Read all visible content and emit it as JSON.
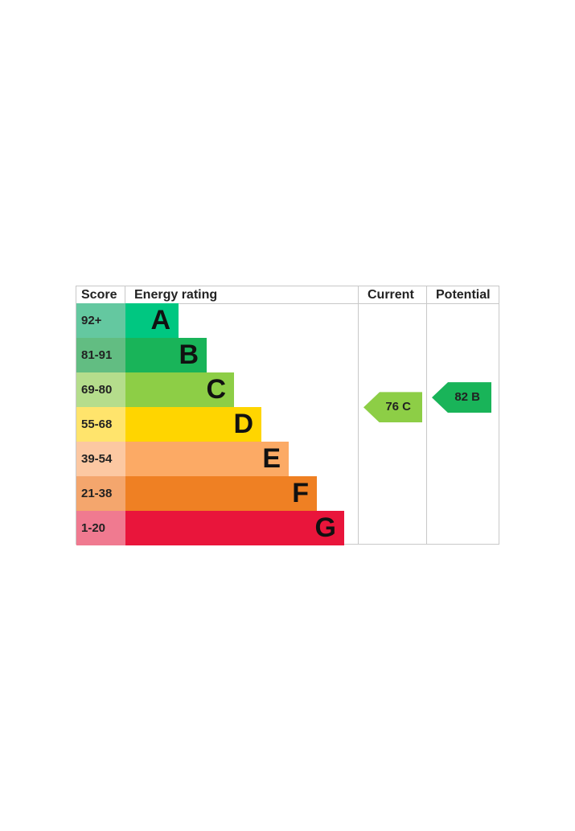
{
  "chart_data": {
    "type": "table",
    "headers": {
      "score": "Score",
      "rating": "Energy rating",
      "current": "Current",
      "potential": "Potential"
    },
    "bands": [
      {
        "letter": "A",
        "range": "92+",
        "color": "#00c781",
        "tint": "#64c8a0"
      },
      {
        "letter": "B",
        "range": "81-91",
        "color": "#19b459",
        "tint": "#62bd82"
      },
      {
        "letter": "C",
        "range": "69-80",
        "color": "#8dce46",
        "tint": "#b5dd8c"
      },
      {
        "letter": "D",
        "range": "55-68",
        "color": "#ffd500",
        "tint": "#ffe46c"
      },
      {
        "letter": "E",
        "range": "39-54",
        "color": "#fcaa65",
        "tint": "#fcc8a2"
      },
      {
        "letter": "F",
        "range": "21-38",
        "color": "#ef8023",
        "tint": "#f4a66d"
      },
      {
        "letter": "G",
        "range": "1-20",
        "color": "#e9153b",
        "tint": "#f07a90"
      }
    ],
    "current": {
      "value": 76,
      "band": "C",
      "label": "76 C",
      "color": "#8dce46"
    },
    "potential": {
      "value": 82,
      "band": "B",
      "label": "82 B",
      "color": "#19b459"
    }
  }
}
